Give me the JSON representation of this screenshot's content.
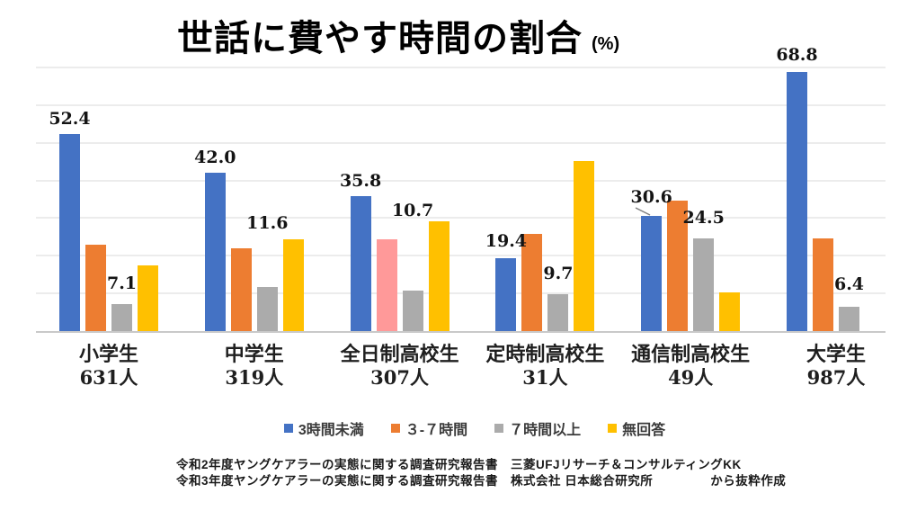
{
  "chart_data": {
    "type": "bar",
    "title": "世話に費やす時間の割合",
    "title_suffix": "(%)",
    "unit": "%",
    "ylim": [
      0,
      70
    ],
    "gridline_step": 10,
    "grid": true,
    "legend_position": "bottom",
    "series": [
      {
        "name": "3時間未満",
        "color": "#4472C4"
      },
      {
        "name": "３-７時間",
        "color": "#ED7D31"
      },
      {
        "name": "７時間以上",
        "color": "#ABABAB"
      },
      {
        "name": "無回答",
        "color": "#FFC000"
      }
    ],
    "color_overrides": [
      {
        "category_index": 2,
        "series_index": 1,
        "color": "#FF9999"
      }
    ],
    "categories": [
      {
        "name": "小学生",
        "count": "631人",
        "values": [
          52.4,
          23.0,
          7.1,
          17.5
        ],
        "labels": [
          {
            "series": 0,
            "text": "52.4",
            "raise": 6
          },
          {
            "series": 2,
            "text": "7.1",
            "raise": 12
          }
        ]
      },
      {
        "name": "中学生",
        "count": "319人",
        "values": [
          42.0,
          22.0,
          11.6,
          24.4
        ],
        "labels": [
          {
            "series": 0,
            "text": "42.0",
            "raise": 6
          },
          {
            "series": 2,
            "text": "11.6",
            "raise": 60
          }
        ]
      },
      {
        "name": "全日制高校生",
        "count": "307人",
        "values": [
          35.8,
          24.4,
          10.7,
          29.1
        ],
        "labels": [
          {
            "series": 0,
            "text": "35.8",
            "raise": 6
          },
          {
            "series": 2,
            "text": "10.7",
            "raise": 78
          }
        ]
      },
      {
        "name": "定時制高校生",
        "count": "31人",
        "values": [
          19.4,
          25.8,
          9.7,
          45.2
        ],
        "labels": [
          {
            "series": 0,
            "text": "19.4",
            "raise": 8
          },
          {
            "series": 2,
            "text": "9.7",
            "raise": 12
          }
        ]
      },
      {
        "name": "通信制高校生",
        "count": "49人",
        "values": [
          30.6,
          34.7,
          24.5,
          10.2
        ],
        "labels": [
          {
            "series": 0,
            "text": "30.6",
            "raise": 10,
            "leader": true
          },
          {
            "series": 2,
            "text": "24.5",
            "raise": 12
          }
        ]
      },
      {
        "name": "大学生",
        "count": "987人",
        "values": [
          68.8,
          24.5,
          6.4,
          0
        ],
        "labels": [
          {
            "series": 0,
            "text": "68.8",
            "raise": 8
          },
          {
            "series": 2,
            "text": "6.4",
            "raise": 14
          }
        ]
      }
    ]
  },
  "source": {
    "line1": "令和2年度ヤングケアラーの実態に関する調査研究報告書　三菱UFJリサーチ＆コンサルティングKK",
    "line2_main": "令和3年度ヤングケアラーの実態に関する調査研究報告書　株式会社 日本総合研究所",
    "line2_suffix": "から抜粋作成"
  }
}
